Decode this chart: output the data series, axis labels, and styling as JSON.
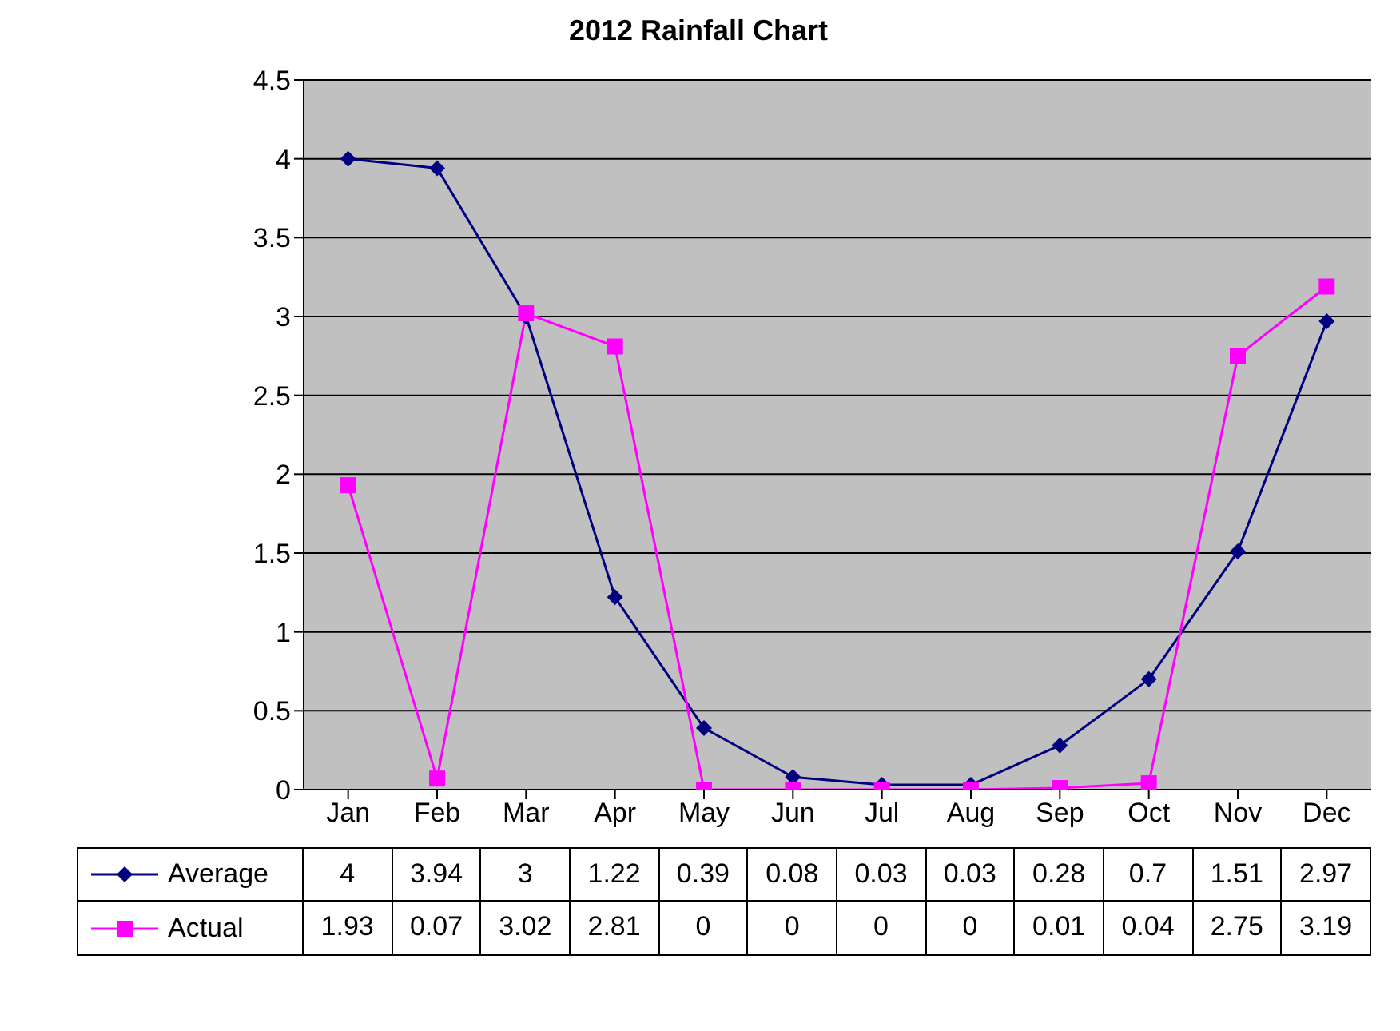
{
  "chart_data": {
    "type": "line",
    "title": "2012 Rainfall Chart",
    "categories": [
      "Jan",
      "Feb",
      "Mar",
      "Apr",
      "May",
      "Jun",
      "Jul",
      "Aug",
      "Sep",
      "Oct",
      "Nov",
      "Dec"
    ],
    "series": [
      {
        "name": "Average",
        "color": "#000080",
        "marker": "diamond",
        "values": [
          4,
          3.94,
          3,
          1.22,
          0.39,
          0.08,
          0.03,
          0.03,
          0.28,
          0.7,
          1.51,
          2.97
        ]
      },
      {
        "name": "Actual",
        "color": "#ff00ff",
        "marker": "square",
        "values": [
          1.93,
          0.07,
          3.02,
          2.81,
          0,
          0,
          0,
          0,
          0.01,
          0.04,
          2.75,
          3.19
        ]
      }
    ],
    "ylim": [
      0,
      4.5
    ],
    "yticks": [
      0,
      0.5,
      1,
      1.5,
      2,
      2.5,
      3,
      3.5,
      4,
      4.5
    ],
    "grid": "y",
    "legend": "bottom",
    "data_labels": true
  }
}
